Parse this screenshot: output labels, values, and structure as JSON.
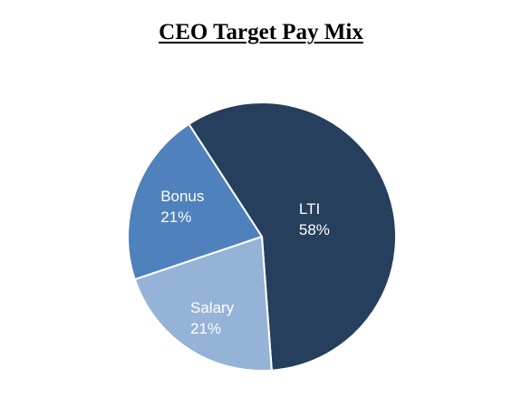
{
  "chart_data": {
    "type": "pie",
    "title": "CEO Target Pay Mix",
    "categories": [
      "LTI",
      "Salary",
      "Bonus"
    ],
    "values": [
      58,
      21,
      21
    ],
    "value_labels": [
      "58%",
      "21%",
      "21%"
    ],
    "colors": [
      "#253f5d",
      "#95b3d7",
      "#4f81bd"
    ],
    "legend": "none",
    "label_position": "inside"
  }
}
